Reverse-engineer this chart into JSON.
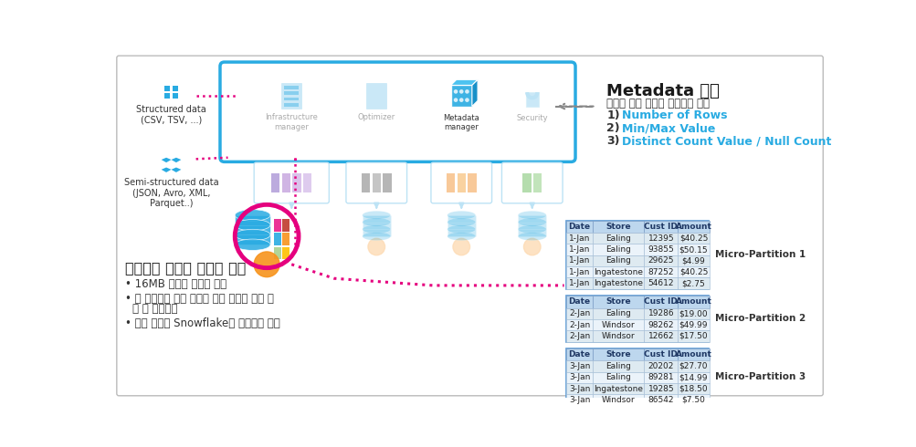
{
  "sky_blue": "#29ABE2",
  "light_blue": "#BDE3F5",
  "light_blue2": "#D6EEF8",
  "pink": "#E5007E",
  "orange": "#F7941D",
  "orange_light": "#FDDBB4",
  "table_header_bg": "#BDD7EE",
  "table_header_text": "#1F3864",
  "table_row_bg1": "#DEEAF1",
  "table_row_bg2": "#EBF3FA",
  "gray_text": "#595959",
  "metadata_title": "Metadata 생성",
  "metadata_sub": "데이터 수집 시점에 데이터에 대한",
  "metadata_items": [
    "Number of Rows",
    "Min/Max Value",
    "Distinct Count Value / Null Count"
  ],
  "storage_title": "스토리지 계층에 데이터 저장",
  "bullet1": "16MB 단위로 나누어 저장",
  "bullet2": "각 파티션은 컨럼 단위로 저장 시점에 자동 압\n  축 및 암호화됨",
  "bullet3": "모든 관리는 Snowflake가 자동으로 수행",
  "partition1": {
    "label": "Micro-Partition 1",
    "headers": [
      "Date",
      "Store",
      "Cust ID",
      "Amount"
    ],
    "rows": [
      [
        "1-Jan",
        "Ealing",
        "12395",
        "$40.25"
      ],
      [
        "1-Jan",
        "Ealing",
        "93855",
        "$50.15"
      ],
      [
        "1-Jan",
        "Ealing",
        "29625",
        "$4.99"
      ],
      [
        "1-Jan",
        "Ingatestone",
        "87252",
        "$40.25"
      ],
      [
        "1-Jan",
        "Ingatestone",
        "54612",
        "$2.75"
      ]
    ]
  },
  "partition2": {
    "label": "Micro-Partition 2",
    "headers": [
      "Date",
      "Store",
      "Cust ID",
      "Amount"
    ],
    "rows": [
      [
        "2-Jan",
        "Ealing",
        "19286",
        "$19.00"
      ],
      [
        "2-Jan",
        "Windsor",
        "98262",
        "$49.99"
      ],
      [
        "2-Jan",
        "Windsor",
        "12662",
        "$17.50"
      ]
    ]
  },
  "partition3": {
    "label": "Micro-Partition 3",
    "headers": [
      "Date",
      "Store",
      "Cust ID",
      "Amount"
    ],
    "rows": [
      [
        "3-Jan",
        "Ealing",
        "20202",
        "$27.70"
      ],
      [
        "3-Jan",
        "Ealing",
        "89281",
        "$14.99"
      ],
      [
        "3-Jan",
        "Ingatestone",
        "19285",
        "$18.50"
      ],
      [
        "3-Jan",
        "Windsor",
        "86542",
        "$7.50"
      ]
    ]
  }
}
